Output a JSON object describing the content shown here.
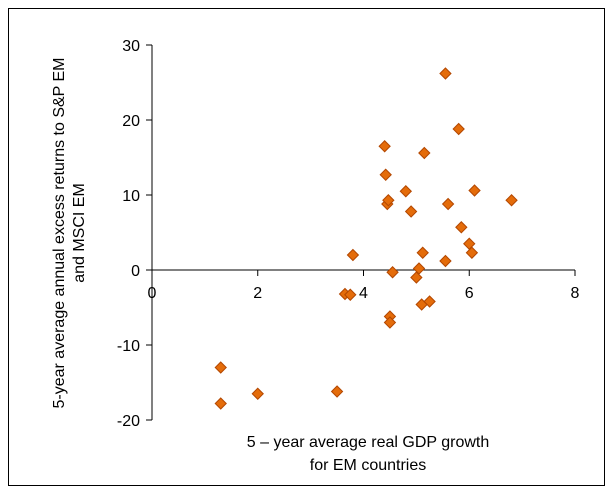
{
  "chart_data": {
    "type": "scatter",
    "title": "",
    "xlabel_lines": [
      "5 – year average real GDP growth",
      "for EM countries"
    ],
    "ylabel_lines": [
      "5-year average annual excess returns to S&P EM",
      "and MSCI EM"
    ],
    "xlim": [
      0,
      8
    ],
    "ylim": [
      -20,
      30
    ],
    "xticks": [
      0,
      2,
      4,
      6,
      8
    ],
    "yticks": [
      -20,
      -10,
      0,
      10,
      20,
      30
    ],
    "xtick_labels": [
      "0",
      "2",
      "4",
      "6",
      "8"
    ],
    "ytick_labels": [
      "-20",
      "-10",
      "0",
      "10",
      "20",
      "30"
    ],
    "grid": false,
    "legend": "none",
    "marker": "diamond",
    "marker_color": "#E46C0A",
    "marker_edge_color": "#B34700",
    "points": [
      {
        "x": 1.3,
        "y": -13.0
      },
      {
        "x": 1.3,
        "y": -17.8
      },
      {
        "x": 2.0,
        "y": -16.5
      },
      {
        "x": 3.5,
        "y": -16.2
      },
      {
        "x": 3.65,
        "y": -3.2
      },
      {
        "x": 3.75,
        "y": -3.3
      },
      {
        "x": 3.8,
        "y": 2.0
      },
      {
        "x": 4.4,
        "y": 16.5
      },
      {
        "x": 4.42,
        "y": 12.7
      },
      {
        "x": 4.45,
        "y": 8.8
      },
      {
        "x": 4.47,
        "y": 9.3
      },
      {
        "x": 4.5,
        "y": -6.2
      },
      {
        "x": 4.5,
        "y": -7.0
      },
      {
        "x": 4.55,
        "y": -0.3
      },
      {
        "x": 4.8,
        "y": 10.5
      },
      {
        "x": 4.9,
        "y": 7.8
      },
      {
        "x": 5.0,
        "y": -1.0
      },
      {
        "x": 5.05,
        "y": 0.2
      },
      {
        "x": 5.1,
        "y": -4.6
      },
      {
        "x": 5.12,
        "y": 2.3
      },
      {
        "x": 5.15,
        "y": 15.6
      },
      {
        "x": 5.25,
        "y": -4.2
      },
      {
        "x": 5.55,
        "y": 26.2
      },
      {
        "x": 5.6,
        "y": 8.8
      },
      {
        "x": 5.55,
        "y": 1.2
      },
      {
        "x": 5.8,
        "y": 18.8
      },
      {
        "x": 5.85,
        "y": 5.7
      },
      {
        "x": 6.0,
        "y": 3.5
      },
      {
        "x": 6.05,
        "y": 2.3
      },
      {
        "x": 6.1,
        "y": 10.6
      },
      {
        "x": 6.8,
        "y": 9.3
      }
    ]
  }
}
